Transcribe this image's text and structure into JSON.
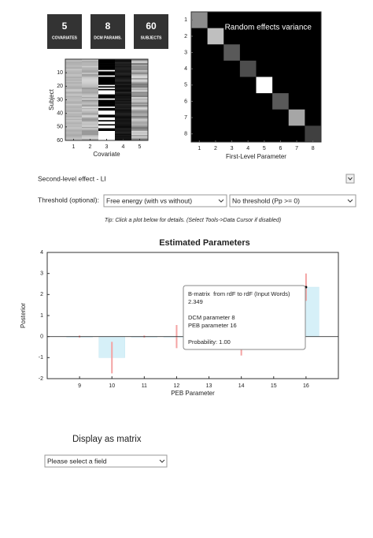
{
  "header": {
    "counters": [
      {
        "value": 5,
        "label": "COVARIATES"
      },
      {
        "value": 8,
        "label": "DCM PARAMS."
      },
      {
        "value": 60,
        "label": "SUBJECTS"
      }
    ]
  },
  "chart_data": [
    {
      "type": "matrix",
      "ylabel": "Subject",
      "xlabel": "Covariate",
      "xticks": [
        1,
        2,
        3,
        4,
        5
      ],
      "yticks": [
        10,
        20,
        30,
        40,
        50,
        60
      ],
      "xlim": [
        0.5,
        5.5
      ],
      "ylim": [
        0,
        60
      ]
    },
    {
      "type": "heatmap",
      "title": "Random effects variance",
      "xlabel": "First-Level Parameter",
      "xticks": [
        1,
        2,
        3,
        4,
        5,
        6,
        7,
        8
      ],
      "yticks": [
        1,
        2,
        3,
        4,
        5,
        6,
        7,
        8
      ],
      "diagonal": [
        0.55,
        0.75,
        0.35,
        0.3,
        1.0,
        0.35,
        0.65,
        0.25
      ]
    },
    {
      "type": "bar",
      "title": "Estimated Parameters",
      "xlabel": "PEB Parameter",
      "ylabel": "Posterior",
      "x": [
        9,
        10,
        11,
        12,
        13,
        14,
        15,
        16
      ],
      "values": [
        0,
        -1,
        0,
        0,
        0,
        0,
        0,
        2.349
      ],
      "errors": [
        0.05,
        0.75,
        0.05,
        0.55,
        0.05,
        0.9,
        0.05,
        0.65
      ],
      "color": "#d6f0f8",
      "error_color": "#f4a3a3",
      "xlim": [
        8,
        17
      ],
      "ylim": [
        -2,
        4
      ],
      "xticks": [
        9,
        10,
        11,
        12,
        13,
        14,
        15,
        16
      ],
      "yticks": [
        -2,
        -1,
        0,
        1,
        2,
        3,
        4
      ]
    }
  ],
  "controls": {
    "effect_select": "Second-level effect - LI",
    "threshold_label": "Threshold (optional):",
    "threshold_method": "Free energy (with vs without)",
    "threshold_value": "No threshold (Pp >= 0)",
    "tip": "Tip: Click a plot below for details. (Select Tools->Data Cursor if disabled)",
    "display_label": "Display as matrix",
    "field_select": "Please select a field"
  },
  "tooltip": {
    "lines": [
      "B-matrix  from rdF to rdF (Input Words)",
      "2.349",
      "DCM parameter 8",
      "PEB parameter 16",
      "Probability: 1.00"
    ]
  }
}
